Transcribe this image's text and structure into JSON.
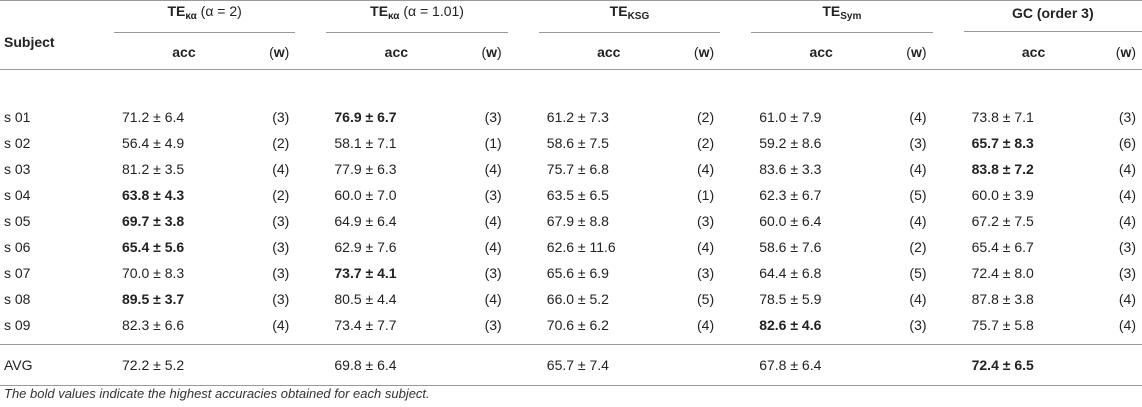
{
  "header": {
    "subject_label": "Subject",
    "groups": [
      {
        "main": "TE",
        "sub": "κα",
        "rest": " (α = 2)"
      },
      {
        "main": "TE",
        "sub": "κα",
        "rest": " (α = 1.01)"
      },
      {
        "main": "TE",
        "sub": "KSG",
        "rest": ""
      },
      {
        "main": "TE",
        "sub": "Sym",
        "rest": ""
      },
      {
        "main": "GC (order 3)",
        "sub": "",
        "rest": ""
      }
    ],
    "acc_label": "acc",
    "w_open": "(",
    "w_letter": "w",
    "w_close": ")"
  },
  "rows": [
    {
      "subject": "s 01",
      "cells": [
        [
          "71.2 ± 6.4",
          "(3)"
        ],
        [
          "76.9 ± 6.7",
          "(3)"
        ],
        [
          "61.2 ± 7.3",
          "(2)"
        ],
        [
          "61.0 ± 7.9",
          "(4)"
        ],
        [
          "73.8 ± 7.1",
          "(3)"
        ]
      ]
    },
    {
      "subject": "s 02",
      "cells": [
        [
          "56.4 ± 4.9",
          "(2)"
        ],
        [
          "58.1 ± 7.1",
          "(1)"
        ],
        [
          "58.6 ± 7.5",
          "(2)"
        ],
        [
          "59.2 ± 8.6",
          "(3)"
        ],
        [
          "65.7 ± 8.3",
          "(6)"
        ]
      ]
    },
    {
      "subject": "s 03",
      "cells": [
        [
          "81.2 ± 3.5",
          "(4)"
        ],
        [
          "77.9 ± 6.3",
          "(4)"
        ],
        [
          "75.7 ± 6.8",
          "(4)"
        ],
        [
          "83.6 ± 3.3",
          "(4)"
        ],
        [
          "83.8 ± 7.2",
          "(4)"
        ]
      ]
    },
    {
      "subject": "s 04",
      "cells": [
        [
          "63.8 ± 4.3",
          "(2)"
        ],
        [
          "60.0 ± 7.0",
          "(3)"
        ],
        [
          "63.5 ± 6.5",
          "(1)"
        ],
        [
          "62.3 ± 6.7",
          "(5)"
        ],
        [
          "60.0 ± 3.9",
          "(4)"
        ]
      ]
    },
    {
      "subject": "s 05",
      "cells": [
        [
          "69.7 ± 3.8",
          "(3)"
        ],
        [
          "64.9 ± 6.4",
          "(4)"
        ],
        [
          "67.9 ± 8.8",
          "(3)"
        ],
        [
          "60.0 ± 6.4",
          "(4)"
        ],
        [
          "67.2 ± 7.5",
          "(4)"
        ]
      ]
    },
    {
      "subject": "s 06",
      "cells": [
        [
          "65.4 ± 5.6",
          "(3)"
        ],
        [
          "62.9 ± 7.6",
          "(4)"
        ],
        [
          "62.6 ± 11.6",
          "(4)"
        ],
        [
          "58.6 ± 7.6",
          "(2)"
        ],
        [
          "65.4 ± 6.7",
          "(3)"
        ]
      ]
    },
    {
      "subject": "s 07",
      "cells": [
        [
          "70.0 ± 8.3",
          "(3)"
        ],
        [
          "73.7 ± 4.1",
          "(3)"
        ],
        [
          "65.6 ± 6.9",
          "(3)"
        ],
        [
          "64.4 ± 6.8",
          "(5)"
        ],
        [
          "72.4 ± 8.0",
          "(3)"
        ]
      ]
    },
    {
      "subject": "s 08",
      "cells": [
        [
          "89.5 ± 3.7",
          "(3)"
        ],
        [
          "80.5 ± 4.4",
          "(4)"
        ],
        [
          "66.0 ± 5.2",
          "(5)"
        ],
        [
          "78.5 ± 5.9",
          "(4)"
        ],
        [
          "87.8 ± 3.8",
          "(4)"
        ]
      ]
    },
    {
      "subject": "s 09",
      "cells": [
        [
          "82.3 ± 6.6",
          "(4)"
        ],
        [
          "73.4 ± 7.7",
          "(3)"
        ],
        [
          "70.6 ± 6.2",
          "(4)"
        ],
        [
          "82.6 ± 4.6",
          "(3)"
        ],
        [
          "75.7 ± 5.8",
          "(4)"
        ]
      ]
    }
  ],
  "bold_cells": [
    [
      0,
      1
    ],
    [
      1,
      4
    ],
    [
      2,
      4
    ],
    [
      3,
      0
    ],
    [
      4,
      0
    ],
    [
      5,
      0
    ],
    [
      6,
      1
    ],
    [
      7,
      0
    ],
    [
      8,
      3
    ]
  ],
  "avg": {
    "label": "AVG",
    "values": [
      "72.2 ± 5.2",
      "69.8 ± 6.4",
      "65.7 ± 7.4",
      "67.8 ± 6.4",
      "72.4 ± 6.5"
    ],
    "bold_index": 4
  },
  "footnote": "The bold values indicate the highest accuracies obtained for each subject."
}
